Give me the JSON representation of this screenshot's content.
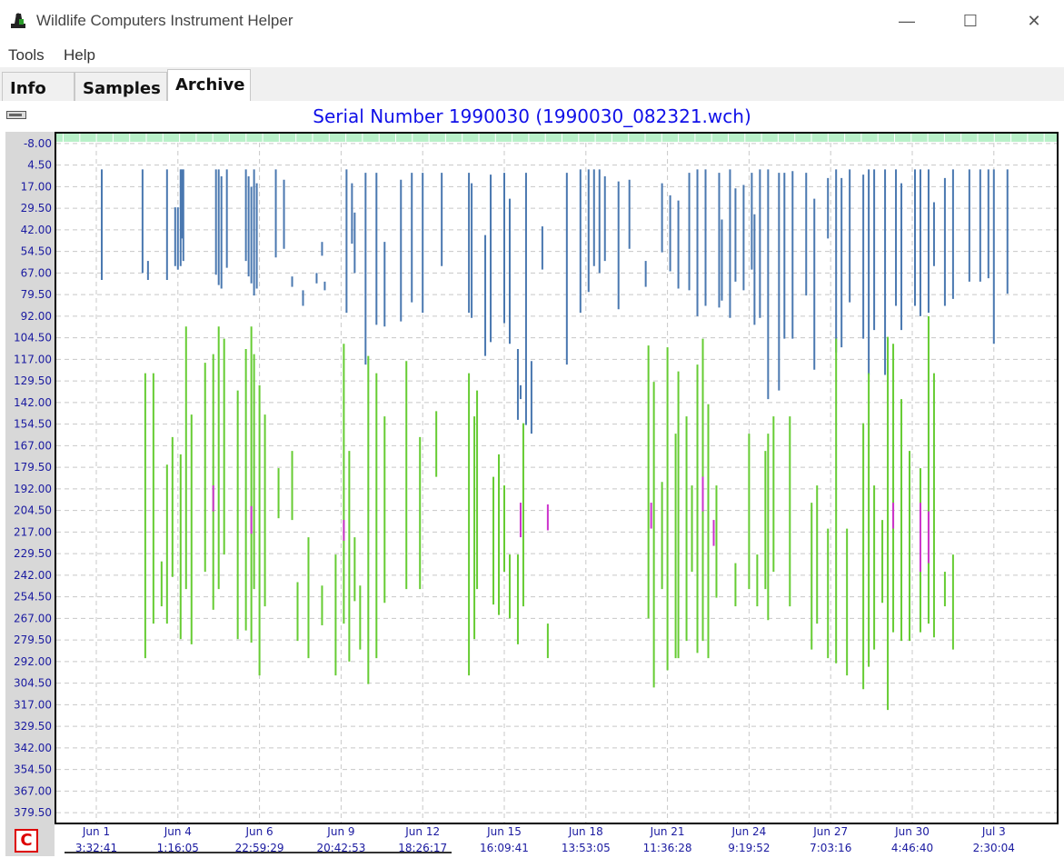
{
  "window": {
    "title": "Wildlife Computers Instrument Helper",
    "minimize_glyph": "—",
    "maximize_glyph": "☐",
    "close_glyph": "✕"
  },
  "menu": [
    "Tools",
    "Help"
  ],
  "tabs": [
    {
      "label": "Info",
      "active": false
    },
    {
      "label": "Samples",
      "active": false
    },
    {
      "label": "Archive",
      "active": true
    }
  ],
  "corner_button": "C",
  "colors": {
    "title": "#1010e8",
    "depth_series": "#4a78b0",
    "green_series": "#66cc33",
    "purple_series": "#cc33cc",
    "top_band": "#b8f0c8",
    "axis_text": "#1a1aa0"
  },
  "chart_data": {
    "type": "line",
    "title": "Serial Number 1990030 (1990030_082321.wch)",
    "y_ticks": [
      "-8.00",
      "4.50",
      "17.00",
      "29.50",
      "42.00",
      "54.50",
      "67.00",
      "79.50",
      "92.00",
      "104.50",
      "117.00",
      "129.50",
      "142.00",
      "154.50",
      "167.00",
      "179.50",
      "192.00",
      "204.50",
      "217.00",
      "229.50",
      "242.00",
      "254.50",
      "267.00",
      "279.50",
      "292.00",
      "304.50",
      "317.00",
      "329.50",
      "342.00",
      "354.50",
      "367.00",
      "379.50"
    ],
    "x_ticks": [
      {
        "date": "Jun 1",
        "time": "3:32:41"
      },
      {
        "date": "Jun 4",
        "time": "1:16:05"
      },
      {
        "date": "Jun 6",
        "time": "22:59:29"
      },
      {
        "date": "Jun 9",
        "time": "20:42:53"
      },
      {
        "date": "Jun 12",
        "time": "18:26:17"
      },
      {
        "date": "Jun 15",
        "time": "16:09:41"
      },
      {
        "date": "Jun 18",
        "time": "13:53:05"
      },
      {
        "date": "Jun 21",
        "time": "11:36:28"
      },
      {
        "date": "Jun 24",
        "time": "9:19:52"
      },
      {
        "date": "Jun 27",
        "time": "7:03:16"
      },
      {
        "date": "Jun 30",
        "time": "4:46:40"
      },
      {
        "date": "Jul 3",
        "time": "2:30:04"
      }
    ],
    "y_inverted": true,
    "ylim": [
      -14.25,
      385.75
    ],
    "grid": true,
    "series": [
      {
        "color_key": "depth_series",
        "segments": [
          [
            0.2,
            7,
            71
          ],
          [
            1.7,
            7,
            67
          ],
          [
            1.9,
            60,
            71
          ],
          [
            2.6,
            7,
            71
          ],
          [
            2.9,
            29,
            63
          ],
          [
            3,
            29,
            65
          ],
          [
            3.1,
            7,
            63
          ],
          [
            3.15,
            7,
            47
          ],
          [
            3.2,
            7,
            60
          ],
          [
            4.4,
            7,
            68
          ],
          [
            4.5,
            7,
            74
          ],
          [
            4.6,
            11,
            76
          ],
          [
            4.8,
            7,
            64
          ],
          [
            5.5,
            7,
            60
          ],
          [
            5.6,
            11,
            69
          ],
          [
            5.7,
            17,
            73
          ],
          [
            5.8,
            7,
            80
          ],
          [
            5.9,
            15,
            76
          ],
          [
            6.6,
            7,
            58
          ],
          [
            6.9,
            13,
            53
          ],
          [
            7.2,
            69,
            75
          ],
          [
            7.6,
            77,
            86
          ],
          [
            8.1,
            67,
            73
          ],
          [
            8.3,
            49,
            57
          ],
          [
            8.4,
            72,
            77
          ],
          [
            9.2,
            7,
            90
          ],
          [
            9.4,
            15,
            50
          ],
          [
            9.5,
            32,
            67
          ],
          [
            9.9,
            9,
            120
          ],
          [
            10.3,
            9,
            97
          ],
          [
            10.6,
            49,
            98
          ],
          [
            11.2,
            13,
            95
          ],
          [
            11.6,
            9,
            84
          ],
          [
            12,
            9,
            90
          ],
          [
            12.7,
            9,
            63
          ],
          [
            13.7,
            9,
            90
          ],
          [
            13.8,
            15,
            93
          ],
          [
            14.3,
            45,
            115
          ],
          [
            14.5,
            10,
            107
          ],
          [
            15,
            9,
            96
          ],
          [
            15.2,
            24,
            108
          ],
          [
            15.5,
            111,
            152
          ],
          [
            15.6,
            132,
            140
          ],
          [
            15.8,
            9,
            155
          ],
          [
            16,
            118,
            160
          ],
          [
            16.4,
            40,
            65
          ],
          [
            17.3,
            9,
            120
          ],
          [
            17.8,
            7,
            90
          ],
          [
            18.1,
            7,
            78
          ],
          [
            18.3,
            7,
            63
          ],
          [
            18.5,
            7,
            67
          ],
          [
            18.7,
            11,
            60
          ],
          [
            19.2,
            14,
            88
          ],
          [
            19.6,
            13,
            53
          ],
          [
            20.2,
            60,
            75
          ],
          [
            20.8,
            15,
            55
          ],
          [
            21.1,
            22,
            66
          ],
          [
            21.4,
            25,
            76
          ],
          [
            21.8,
            9,
            77
          ],
          [
            22.1,
            7,
            92
          ],
          [
            22.4,
            7,
            86
          ],
          [
            22.9,
            9,
            87
          ],
          [
            23,
            36,
            83
          ],
          [
            23.3,
            7,
            93
          ],
          [
            23.5,
            18,
            72
          ],
          [
            23.8,
            16,
            77
          ],
          [
            24.1,
            9,
            65
          ],
          [
            24.2,
            33,
            97
          ],
          [
            24.4,
            7,
            93
          ],
          [
            24.7,
            7,
            140
          ],
          [
            25.1,
            9,
            135
          ],
          [
            25.3,
            9,
            105
          ],
          [
            25.6,
            8,
            105
          ],
          [
            26.1,
            9,
            80
          ],
          [
            26.4,
            24,
            123
          ],
          [
            26.9,
            12,
            47
          ],
          [
            27.2,
            7,
            113
          ],
          [
            27.4,
            12,
            110
          ],
          [
            27.7,
            7,
            84
          ],
          [
            28.2,
            10,
            105
          ],
          [
            28.4,
            7,
            126
          ],
          [
            28.6,
            7,
            100
          ],
          [
            29,
            7,
            126
          ],
          [
            29.4,
            7,
            86
          ],
          [
            29.6,
            15,
            100
          ],
          [
            30.1,
            7,
            86
          ],
          [
            30.3,
            7,
            92
          ],
          [
            30.6,
            7,
            90
          ],
          [
            30.8,
            26,
            63
          ],
          [
            31.2,
            12,
            86
          ],
          [
            31.5,
            7,
            82
          ],
          [
            32.1,
            7,
            72
          ],
          [
            32.5,
            7,
            72
          ],
          [
            32.8,
            7,
            70
          ],
          [
            33,
            7,
            108
          ],
          [
            33.5,
            7,
            79
          ]
        ]
      },
      {
        "color_key": "green_series",
        "segments": [
          [
            1.8,
            125,
            290
          ],
          [
            2.1,
            125,
            270
          ],
          [
            2.4,
            234,
            260
          ],
          [
            2.6,
            178,
            270
          ],
          [
            2.8,
            162,
            243
          ],
          [
            3.1,
            172,
            279
          ],
          [
            3.3,
            98,
            250
          ],
          [
            3.5,
            149,
            282
          ],
          [
            4,
            119,
            240
          ],
          [
            4.3,
            114,
            262
          ],
          [
            4.5,
            98,
            250
          ],
          [
            4.7,
            105,
            230
          ],
          [
            5.2,
            135,
            279
          ],
          [
            5.5,
            111,
            274
          ],
          [
            5.7,
            98,
            281
          ],
          [
            5.8,
            114,
            250
          ],
          [
            6,
            132,
            300
          ],
          [
            6.2,
            149,
            260
          ],
          [
            6.7,
            180,
            209
          ],
          [
            7.2,
            170,
            210
          ],
          [
            7.4,
            246,
            280
          ],
          [
            7.8,
            220,
            290
          ],
          [
            8.3,
            248,
            271
          ],
          [
            8.8,
            230,
            300
          ],
          [
            9.1,
            108,
            270
          ],
          [
            9.3,
            170,
            292
          ],
          [
            9.5,
            220,
            257
          ],
          [
            9.7,
            248,
            285
          ],
          [
            10,
            115,
            305
          ],
          [
            10.3,
            125,
            290
          ],
          [
            10.6,
            150,
            258
          ],
          [
            11.4,
            118,
            250
          ],
          [
            11.9,
            162,
            250
          ],
          [
            12.5,
            147,
            185
          ],
          [
            13.7,
            125,
            300
          ],
          [
            13.9,
            150,
            279
          ],
          [
            14,
            135,
            250
          ],
          [
            14.6,
            185,
            259
          ],
          [
            14.8,
            172,
            265
          ],
          [
            15,
            190,
            240
          ],
          [
            15.2,
            230,
            267
          ],
          [
            15.5,
            230,
            282
          ],
          [
            15.7,
            154,
            260
          ],
          [
            16.6,
            270,
            290
          ],
          [
            20.3,
            109,
            267
          ],
          [
            20.5,
            130,
            307
          ],
          [
            20.8,
            188,
            250
          ],
          [
            21,
            110,
            297
          ],
          [
            21.3,
            160,
            290
          ],
          [
            21.4,
            124,
            290
          ],
          [
            21.7,
            150,
            280
          ],
          [
            21.9,
            190,
            240
          ],
          [
            22.1,
            120,
            287
          ],
          [
            22.3,
            105,
            280
          ],
          [
            22.5,
            143,
            290
          ],
          [
            22.8,
            190,
            255
          ],
          [
            23.5,
            235,
            260
          ],
          [
            24,
            160,
            250
          ],
          [
            24.3,
            230,
            260
          ],
          [
            24.6,
            170,
            250
          ],
          [
            24.7,
            160,
            268
          ],
          [
            24.9,
            150,
            240
          ],
          [
            25.5,
            150,
            260
          ],
          [
            26.3,
            200,
            285
          ],
          [
            26.5,
            190,
            270
          ],
          [
            26.9,
            215,
            290
          ],
          [
            27.2,
            105,
            293
          ],
          [
            27.6,
            215,
            300
          ],
          [
            28.2,
            154,
            308
          ],
          [
            28.4,
            125,
            295
          ],
          [
            28.6,
            190,
            285
          ],
          [
            28.9,
            210,
            258
          ],
          [
            29.1,
            104,
            320
          ],
          [
            29.3,
            108,
            275
          ],
          [
            29.6,
            140,
            280
          ],
          [
            29.9,
            170,
            280
          ],
          [
            30.3,
            180,
            275
          ],
          [
            30.6,
            92,
            270
          ],
          [
            30.8,
            125,
            278
          ],
          [
            31.2,
            240,
            260
          ],
          [
            31.5,
            230,
            285
          ]
        ]
      },
      {
        "color_key": "purple_series",
        "segments": [
          [
            4.3,
            190,
            205
          ],
          [
            5.7,
            202,
            218
          ],
          [
            9.1,
            210,
            222
          ],
          [
            15.6,
            200,
            220
          ],
          [
            16.6,
            201,
            216
          ],
          [
            20.4,
            200,
            215
          ],
          [
            22.3,
            185,
            205
          ],
          [
            22.7,
            210,
            225
          ],
          [
            29.3,
            200,
            215
          ],
          [
            30.3,
            200,
            240
          ],
          [
            30.6,
            205,
            235
          ]
        ]
      }
    ]
  }
}
